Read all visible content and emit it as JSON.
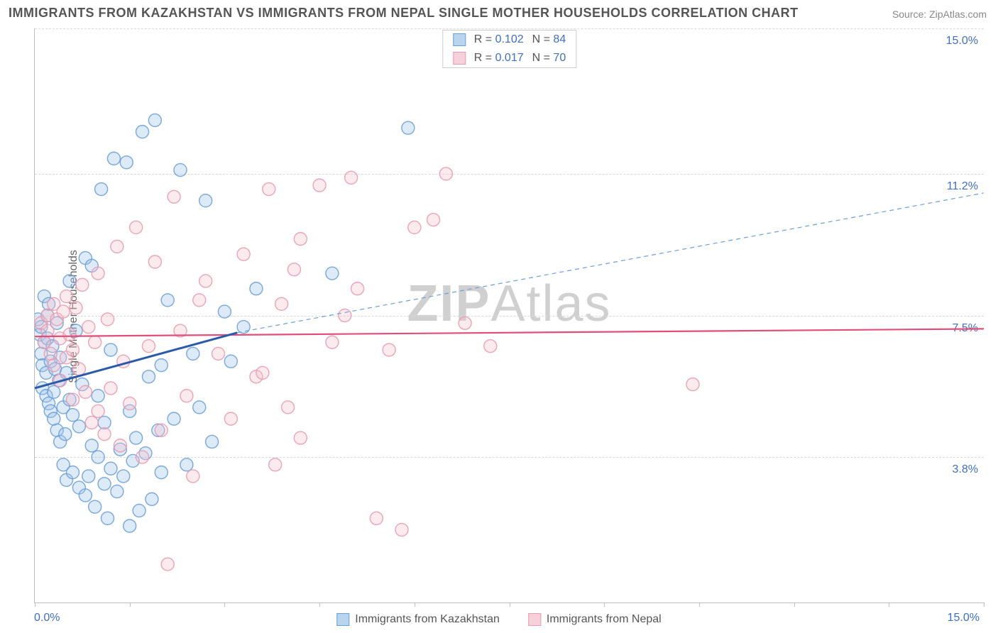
{
  "title": "IMMIGRANTS FROM KAZAKHSTAN VS IMMIGRANTS FROM NEPAL SINGLE MOTHER HOUSEHOLDS CORRELATION CHART",
  "source_label": "Source: ",
  "source_name": "ZipAtlas.com",
  "yaxis_title": "Single Mother Households",
  "watermark_bold": "ZIP",
  "watermark_light": "Atlas",
  "chart": {
    "type": "scatter",
    "xlim": [
      0,
      15
    ],
    "ylim": [
      0,
      15
    ],
    "xtick_positions": [
      0,
      1.5,
      3.0,
      4.5,
      6.0,
      7.5,
      9.0,
      10.5,
      12.0,
      13.5,
      15.0
    ],
    "x_label_min": "0.0%",
    "x_label_max": "15.0%",
    "y_gridlines": [
      {
        "value": 3.8,
        "label": "3.8%"
      },
      {
        "value": 7.5,
        "label": "7.5%"
      },
      {
        "value": 11.2,
        "label": "11.2%"
      },
      {
        "value": 15.0,
        "label": "15.0%"
      }
    ],
    "background_color": "#ffffff",
    "grid_color": "#d8d8d8",
    "axis_color": "#bdbdbd",
    "marker_radius": 9,
    "marker_stroke_opacity": 0.9,
    "marker_fill_opacity": 0.35,
    "series": [
      {
        "id": "kazakhstan",
        "label": "Immigrants from Kazakhstan",
        "fill_color": "#9ec3ea",
        "stroke_color": "#6b9fd8",
        "swatch_fill": "#b9d4ef",
        "swatch_border": "#6b9fd8",
        "r": "0.102",
        "n": "84",
        "trend": {
          "solid_color": "#2b5aa8",
          "dashed_color": "#6b9fd8",
          "solid_width": 3,
          "dashed_width": 1.2,
          "x1": 0.0,
          "y1": 5.6,
          "x_mid": 3.2,
          "y_mid": 7.05,
          "x2": 15.0,
          "y2": 10.7
        },
        "points": [
          [
            0.05,
            7.4
          ],
          [
            0.08,
            7.0
          ],
          [
            0.1,
            6.5
          ],
          [
            0.1,
            7.2
          ],
          [
            0.12,
            5.6
          ],
          [
            0.12,
            6.2
          ],
          [
            0.15,
            6.8
          ],
          [
            0.15,
            8.0
          ],
          [
            0.18,
            5.4
          ],
          [
            0.18,
            6.0
          ],
          [
            0.2,
            6.9
          ],
          [
            0.2,
            7.5
          ],
          [
            0.22,
            5.2
          ],
          [
            0.22,
            7.8
          ],
          [
            0.25,
            6.3
          ],
          [
            0.25,
            5.0
          ],
          [
            0.28,
            6.7
          ],
          [
            0.3,
            4.8
          ],
          [
            0.3,
            5.5
          ],
          [
            0.32,
            6.1
          ],
          [
            0.35,
            7.3
          ],
          [
            0.35,
            4.5
          ],
          [
            0.38,
            5.8
          ],
          [
            0.4,
            6.4
          ],
          [
            0.4,
            4.2
          ],
          [
            0.45,
            5.1
          ],
          [
            0.45,
            3.6
          ],
          [
            0.48,
            4.4
          ],
          [
            0.5,
            6.0
          ],
          [
            0.5,
            3.2
          ],
          [
            0.55,
            5.3
          ],
          [
            0.55,
            8.4
          ],
          [
            0.6,
            3.4
          ],
          [
            0.6,
            4.9
          ],
          [
            0.65,
            7.1
          ],
          [
            0.7,
            3.0
          ],
          [
            0.7,
            4.6
          ],
          [
            0.75,
            5.7
          ],
          [
            0.8,
            2.8
          ],
          [
            0.8,
            9.0
          ],
          [
            0.85,
            3.3
          ],
          [
            0.9,
            4.1
          ],
          [
            0.9,
            8.8
          ],
          [
            0.95,
            2.5
          ],
          [
            1.0,
            3.8
          ],
          [
            1.0,
            5.4
          ],
          [
            1.05,
            10.8
          ],
          [
            1.1,
            3.1
          ],
          [
            1.1,
            4.7
          ],
          [
            1.15,
            2.2
          ],
          [
            1.2,
            3.5
          ],
          [
            1.2,
            6.6
          ],
          [
            1.25,
            11.6
          ],
          [
            1.3,
            2.9
          ],
          [
            1.35,
            4.0
          ],
          [
            1.4,
            3.3
          ],
          [
            1.45,
            11.5
          ],
          [
            1.5,
            2.0
          ],
          [
            1.5,
            5.0
          ],
          [
            1.55,
            3.7
          ],
          [
            1.6,
            4.3
          ],
          [
            1.65,
            2.4
          ],
          [
            1.7,
            12.3
          ],
          [
            1.75,
            3.9
          ],
          [
            1.8,
            5.9
          ],
          [
            1.85,
            2.7
          ],
          [
            1.9,
            12.6
          ],
          [
            1.95,
            4.5
          ],
          [
            2.0,
            3.4
          ],
          [
            2.0,
            6.2
          ],
          [
            2.1,
            7.9
          ],
          [
            2.2,
            4.8
          ],
          [
            2.3,
            11.3
          ],
          [
            2.4,
            3.6
          ],
          [
            2.5,
            6.5
          ],
          [
            2.6,
            5.1
          ],
          [
            2.7,
            10.5
          ],
          [
            2.8,
            4.2
          ],
          [
            3.0,
            7.6
          ],
          [
            3.1,
            6.3
          ],
          [
            3.3,
            7.2
          ],
          [
            3.5,
            8.2
          ],
          [
            4.7,
            8.6
          ],
          [
            5.9,
            12.4
          ]
        ]
      },
      {
        "id": "nepal",
        "label": "Immigrants from Nepal",
        "fill_color": "#f4c4cf",
        "stroke_color": "#e99ab0",
        "swatch_fill": "#f6d0da",
        "swatch_border": "#e99ab0",
        "r": "0.017",
        "n": "70",
        "trend": {
          "solid_color": "#e24d7a",
          "solid_width": 2.2,
          "x1": 0.0,
          "y1": 6.95,
          "x2": 15.0,
          "y2": 7.15
        },
        "points": [
          [
            0.1,
            7.3
          ],
          [
            0.15,
            6.8
          ],
          [
            0.2,
            7.1
          ],
          [
            0.2,
            7.5
          ],
          [
            0.25,
            6.5
          ],
          [
            0.3,
            7.8
          ],
          [
            0.3,
            6.2
          ],
          [
            0.35,
            7.4
          ],
          [
            0.4,
            6.9
          ],
          [
            0.4,
            5.8
          ],
          [
            0.45,
            7.6
          ],
          [
            0.5,
            6.4
          ],
          [
            0.5,
            8.0
          ],
          [
            0.55,
            7.0
          ],
          [
            0.6,
            6.6
          ],
          [
            0.6,
            5.3
          ],
          [
            0.65,
            7.7
          ],
          [
            0.7,
            6.1
          ],
          [
            0.75,
            8.3
          ],
          [
            0.8,
            5.5
          ],
          [
            0.85,
            7.2
          ],
          [
            0.9,
            4.7
          ],
          [
            0.95,
            6.8
          ],
          [
            1.0,
            5.0
          ],
          [
            1.0,
            8.6
          ],
          [
            1.1,
            4.4
          ],
          [
            1.15,
            7.4
          ],
          [
            1.2,
            5.6
          ],
          [
            1.3,
            9.3
          ],
          [
            1.35,
            4.1
          ],
          [
            1.4,
            6.3
          ],
          [
            1.5,
            5.2
          ],
          [
            1.6,
            9.8
          ],
          [
            1.7,
            3.8
          ],
          [
            1.8,
            6.7
          ],
          [
            1.9,
            8.9
          ],
          [
            2.0,
            4.5
          ],
          [
            2.1,
            1.0
          ],
          [
            2.2,
            10.6
          ],
          [
            2.3,
            7.1
          ],
          [
            2.4,
            5.4
          ],
          [
            2.5,
            3.3
          ],
          [
            2.7,
            8.4
          ],
          [
            2.9,
            6.5
          ],
          [
            3.1,
            4.8
          ],
          [
            3.3,
            9.1
          ],
          [
            3.5,
            5.9
          ],
          [
            3.7,
            10.8
          ],
          [
            3.8,
            3.6
          ],
          [
            3.9,
            7.8
          ],
          [
            4.0,
            5.1
          ],
          [
            4.1,
            8.7
          ],
          [
            4.2,
            4.3
          ],
          [
            4.5,
            10.9
          ],
          [
            4.7,
            6.8
          ],
          [
            4.9,
            7.5
          ],
          [
            5.0,
            11.1
          ],
          [
            5.1,
            8.2
          ],
          [
            5.4,
            2.2
          ],
          [
            5.6,
            6.6
          ],
          [
            5.8,
            1.9
          ],
          [
            6.0,
            9.8
          ],
          [
            6.3,
            10.0
          ],
          [
            6.5,
            11.2
          ],
          [
            6.8,
            7.3
          ],
          [
            7.2,
            6.7
          ],
          [
            10.4,
            5.7
          ],
          [
            4.2,
            9.5
          ],
          [
            3.6,
            6.0
          ],
          [
            2.6,
            7.9
          ]
        ]
      }
    ]
  },
  "legend_top_labels": {
    "r": "R =",
    "n": "N ="
  },
  "title_fontsize": 18,
  "label_fontsize": 16,
  "text_color": "#555555",
  "link_color": "#3f6fbf"
}
